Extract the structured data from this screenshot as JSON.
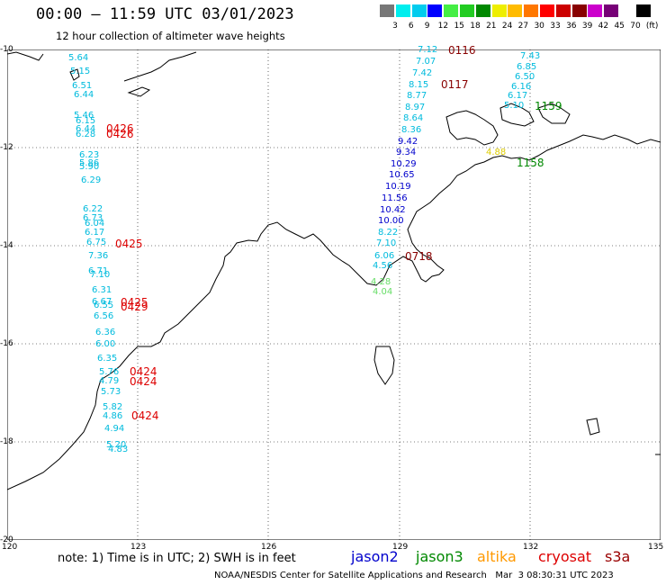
{
  "header": {
    "title": "00:00 – 11:59 UTC 03/01/2023",
    "subtitle": "12 hour collection of altimeter wave heights"
  },
  "color_scale": {
    "unit": "(ft)",
    "steps": [
      {
        "label": "3",
        "color": "#777777"
      },
      {
        "label": "6",
        "color": "#00eeee"
      },
      {
        "label": "9",
        "color": "#00ccee"
      },
      {
        "label": "12",
        "color": "#0000ff"
      },
      {
        "label": "15",
        "color": "#44ee44"
      },
      {
        "label": "18",
        "color": "#22cc22"
      },
      {
        "label": "21",
        "color": "#008800"
      },
      {
        "label": "24",
        "color": "#eeee00"
      },
      {
        "label": "27",
        "color": "#ffbb00"
      },
      {
        "label": "30",
        "color": "#ff7700"
      },
      {
        "label": "33",
        "color": "#ff0000"
      },
      {
        "label": "36",
        "color": "#cc0000"
      },
      {
        "label": "39",
        "color": "#880000"
      },
      {
        "label": "42",
        "color": "#cc00cc"
      },
      {
        "label": "45",
        "color": "#770077"
      },
      {
        "label": "70",
        "color": "#ffffff"
      },
      {
        "label": "",
        "color": "#000000"
      }
    ]
  },
  "axes": {
    "lat_labels": [
      "-10",
      "-12",
      "-14",
      "-16",
      "-18",
      "-20"
    ],
    "lon_labels": [
      "120",
      "123",
      "126",
      "129",
      "132",
      "135"
    ]
  },
  "observations": {
    "track_west": [
      "5.64",
      "5.15",
      "6.51",
      "6.44",
      "5.46",
      "6.15",
      "6.44",
      "6.28",
      "6.23",
      "5.86",
      "5.90",
      "6.29",
      "6.22",
      "6.73",
      "6.04",
      "6.17",
      "6.75",
      "7.36",
      "6.71",
      "7.10",
      "6.31",
      "6.67",
      "6.55",
      "6.56",
      "6.36",
      "6.00",
      "6.35",
      "5.76",
      "4.79",
      "5.73",
      "5.82",
      "4.86",
      "4.94",
      "5.20",
      "4.83"
    ],
    "track_central": [
      "7.12",
      "7.07",
      "7.42",
      "8.15",
      "8.77",
      "8.97",
      "8.64",
      "8.36",
      "9.42",
      "9.34",
      "10.29",
      "10.65",
      "10.19",
      "11.56",
      "10.42",
      "10.00",
      "8.22",
      "7.10",
      "6.06",
      "4.56",
      "4.28",
      "4.04"
    ],
    "track_east": [
      "7.43",
      "6.85",
      "6.50",
      "6.16",
      "6.17",
      "5.10",
      "4.88"
    ]
  },
  "pass_times": [
    "0116",
    "0117",
    "0426",
    "0426",
    "0425",
    "0425",
    "0429",
    "0424",
    "0424",
    "0424",
    "0718",
    "1159",
    "1158"
  ],
  "note": "note: 1) Time is in UTC; 2) SWH is in feet",
  "satellites": [
    {
      "name": "jason2",
      "color": "#0000cc"
    },
    {
      "name": "jason3",
      "color": "#008800"
    },
    {
      "name": "altika",
      "color": "#ff9900"
    },
    {
      "name": "cryosat",
      "color": "#dd0000"
    },
    {
      "name": "s3a",
      "color": "#990000"
    }
  ],
  "credit": "NOAA/NESDIS Center for Satellite Applications and Research   Mar  3 08:30:31 UTC 2023"
}
